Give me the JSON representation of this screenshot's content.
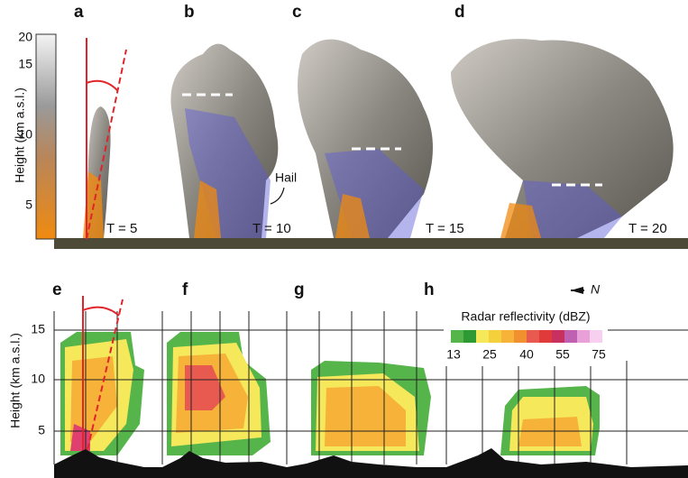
{
  "top": {
    "panels": [
      {
        "label": "a",
        "time": "T = 5"
      },
      {
        "label": "b",
        "time": "T = 10"
      },
      {
        "label": "c",
        "time": "T = 15"
      },
      {
        "label": "d",
        "time": "T = 20"
      }
    ],
    "axis_label": "Height (km a.s.l.)",
    "ticks": [
      "20",
      "15",
      "10",
      "5"
    ],
    "annotation": "Hail"
  },
  "bottom": {
    "panels": [
      "e",
      "f",
      "g",
      "h"
    ],
    "axis_label": "Height (km a.s.l.)",
    "ticks": [
      "15",
      "10",
      "5"
    ],
    "north": "N",
    "legend": {
      "title": "Radar reflectivity (dBZ)",
      "ticks": [
        "13",
        "25",
        "40",
        "55",
        "75"
      ]
    }
  }
}
